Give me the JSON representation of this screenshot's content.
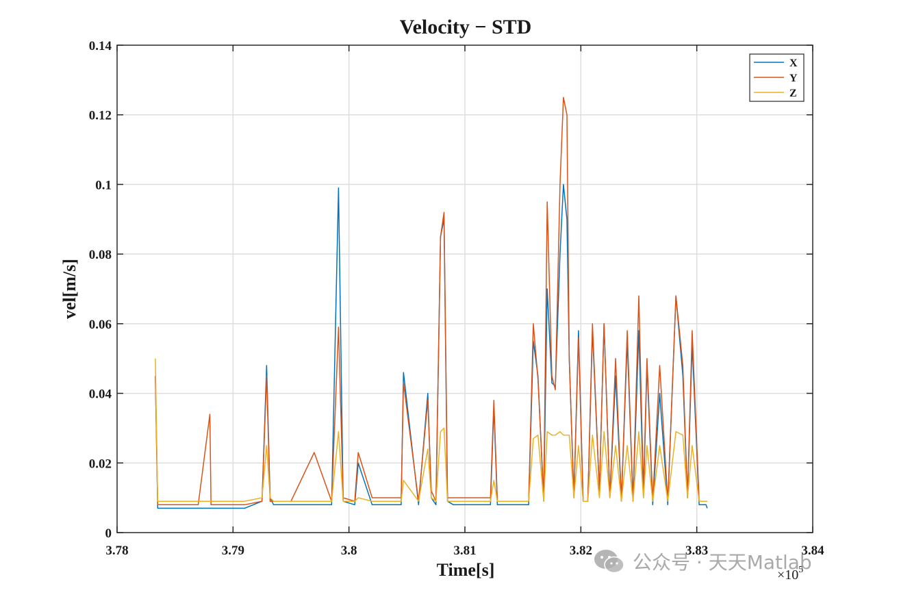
{
  "chart_data": {
    "type": "line",
    "title": "Velocity − STD",
    "xlabel": "Time[s]",
    "ylabel": "vel[m/s]",
    "xlim": [
      3.78,
      3.84
    ],
    "ylim": [
      0,
      0.14
    ],
    "x_scale_note": "×10",
    "x_scale_exponent": "5",
    "grid": true,
    "legend_position": "top-right",
    "xticks": [
      3.78,
      3.79,
      3.8,
      3.81,
      3.82,
      3.83,
      3.84
    ],
    "xtick_labels": [
      "3.78",
      "3.79",
      "3.8",
      "3.81",
      "3.82",
      "3.83",
      "3.84"
    ],
    "yticks": [
      0,
      0.02,
      0.04,
      0.06,
      0.08,
      0.1,
      0.12,
      0.14
    ],
    "ytick_labels": [
      "0",
      "0.02",
      "0.04",
      "0.06",
      "0.08",
      "0.1",
      "0.12",
      "0.14"
    ],
    "x": [
      3.7833,
      3.7835,
      3.785,
      3.787,
      3.788,
      3.7881,
      3.789,
      3.791,
      3.7925,
      3.7929,
      3.7932,
      3.7935,
      3.795,
      3.797,
      3.7985,
      3.7991,
      3.7995,
      3.8005,
      3.8008,
      3.802,
      3.8035,
      3.8045,
      3.8047,
      3.806,
      3.8068,
      3.8071,
      3.8075,
      3.8079,
      3.8082,
      3.8085,
      3.809,
      3.8105,
      3.8122,
      3.8125,
      3.8128,
      3.814,
      3.8155,
      3.8159,
      3.8163,
      3.8168,
      3.8171,
      3.8175,
      3.8178,
      3.8182,
      3.8185,
      3.8188,
      3.819,
      3.8194,
      3.8198,
      3.8202,
      3.8206,
      3.821,
      3.8216,
      3.822,
      3.8225,
      3.823,
      3.8235,
      3.824,
      3.8245,
      3.825,
      3.8254,
      3.8257,
      3.8262,
      3.8268,
      3.8275,
      3.8282,
      3.8288,
      3.8292,
      3.8296,
      3.8302,
      3.8308,
      3.8309
    ],
    "series": [
      {
        "name": "X",
        "color": "#0072BD",
        "values": [
          0.045,
          0.007,
          0.007,
          0.007,
          0.007,
          0.007,
          0.007,
          0.007,
          0.009,
          0.048,
          0.01,
          0.008,
          0.008,
          0.008,
          0.008,
          0.099,
          0.009,
          0.008,
          0.02,
          0.008,
          0.008,
          0.008,
          0.046,
          0.008,
          0.04,
          0.01,
          0.008,
          0.085,
          0.09,
          0.009,
          0.008,
          0.008,
          0.008,
          0.036,
          0.008,
          0.008,
          0.008,
          0.055,
          0.045,
          0.009,
          0.07,
          0.043,
          0.042,
          0.08,
          0.1,
          0.09,
          0.05,
          0.01,
          0.058,
          0.009,
          0.009,
          0.058,
          0.012,
          0.06,
          0.01,
          0.045,
          0.009,
          0.055,
          0.009,
          0.058,
          0.01,
          0.048,
          0.008,
          0.04,
          0.008,
          0.068,
          0.045,
          0.01,
          0.054,
          0.008,
          0.008,
          0.007
        ]
      },
      {
        "name": "Y",
        "color": "#D95319",
        "values": [
          0.045,
          0.008,
          0.008,
          0.008,
          0.034,
          0.008,
          0.008,
          0.008,
          0.009,
          0.045,
          0.009,
          0.009,
          0.009,
          0.023,
          0.009,
          0.059,
          0.01,
          0.009,
          0.023,
          0.01,
          0.01,
          0.01,
          0.043,
          0.009,
          0.038,
          0.012,
          0.009,
          0.085,
          0.092,
          0.01,
          0.01,
          0.01,
          0.01,
          0.038,
          0.009,
          0.009,
          0.009,
          0.06,
          0.044,
          0.01,
          0.095,
          0.045,
          0.041,
          0.1,
          0.125,
          0.12,
          0.05,
          0.01,
          0.056,
          0.009,
          0.009,
          0.06,
          0.012,
          0.06,
          0.01,
          0.05,
          0.009,
          0.058,
          0.009,
          0.068,
          0.012,
          0.05,
          0.009,
          0.048,
          0.009,
          0.068,
          0.048,
          0.01,
          0.058,
          0.009,
          0.009,
          0.009
        ]
      },
      {
        "name": "Z",
        "color": "#EDB120",
        "values": [
          0.05,
          0.009,
          0.009,
          0.009,
          0.009,
          0.009,
          0.009,
          0.009,
          0.01,
          0.025,
          0.01,
          0.009,
          0.009,
          0.009,
          0.009,
          0.029,
          0.009,
          0.009,
          0.01,
          0.009,
          0.009,
          0.009,
          0.015,
          0.009,
          0.024,
          0.01,
          0.009,
          0.029,
          0.03,
          0.009,
          0.009,
          0.009,
          0.009,
          0.015,
          0.009,
          0.009,
          0.009,
          0.027,
          0.028,
          0.009,
          0.029,
          0.028,
          0.028,
          0.029,
          0.028,
          0.028,
          0.028,
          0.01,
          0.025,
          0.009,
          0.009,
          0.028,
          0.01,
          0.029,
          0.01,
          0.025,
          0.009,
          0.025,
          0.009,
          0.029,
          0.01,
          0.025,
          0.009,
          0.025,
          0.009,
          0.029,
          0.028,
          0.01,
          0.025,
          0.009,
          0.009,
          0.009
        ]
      }
    ]
  },
  "watermark": {
    "text": "公众号 · 天天Matlab",
    "icon": "wechat-icon"
  }
}
